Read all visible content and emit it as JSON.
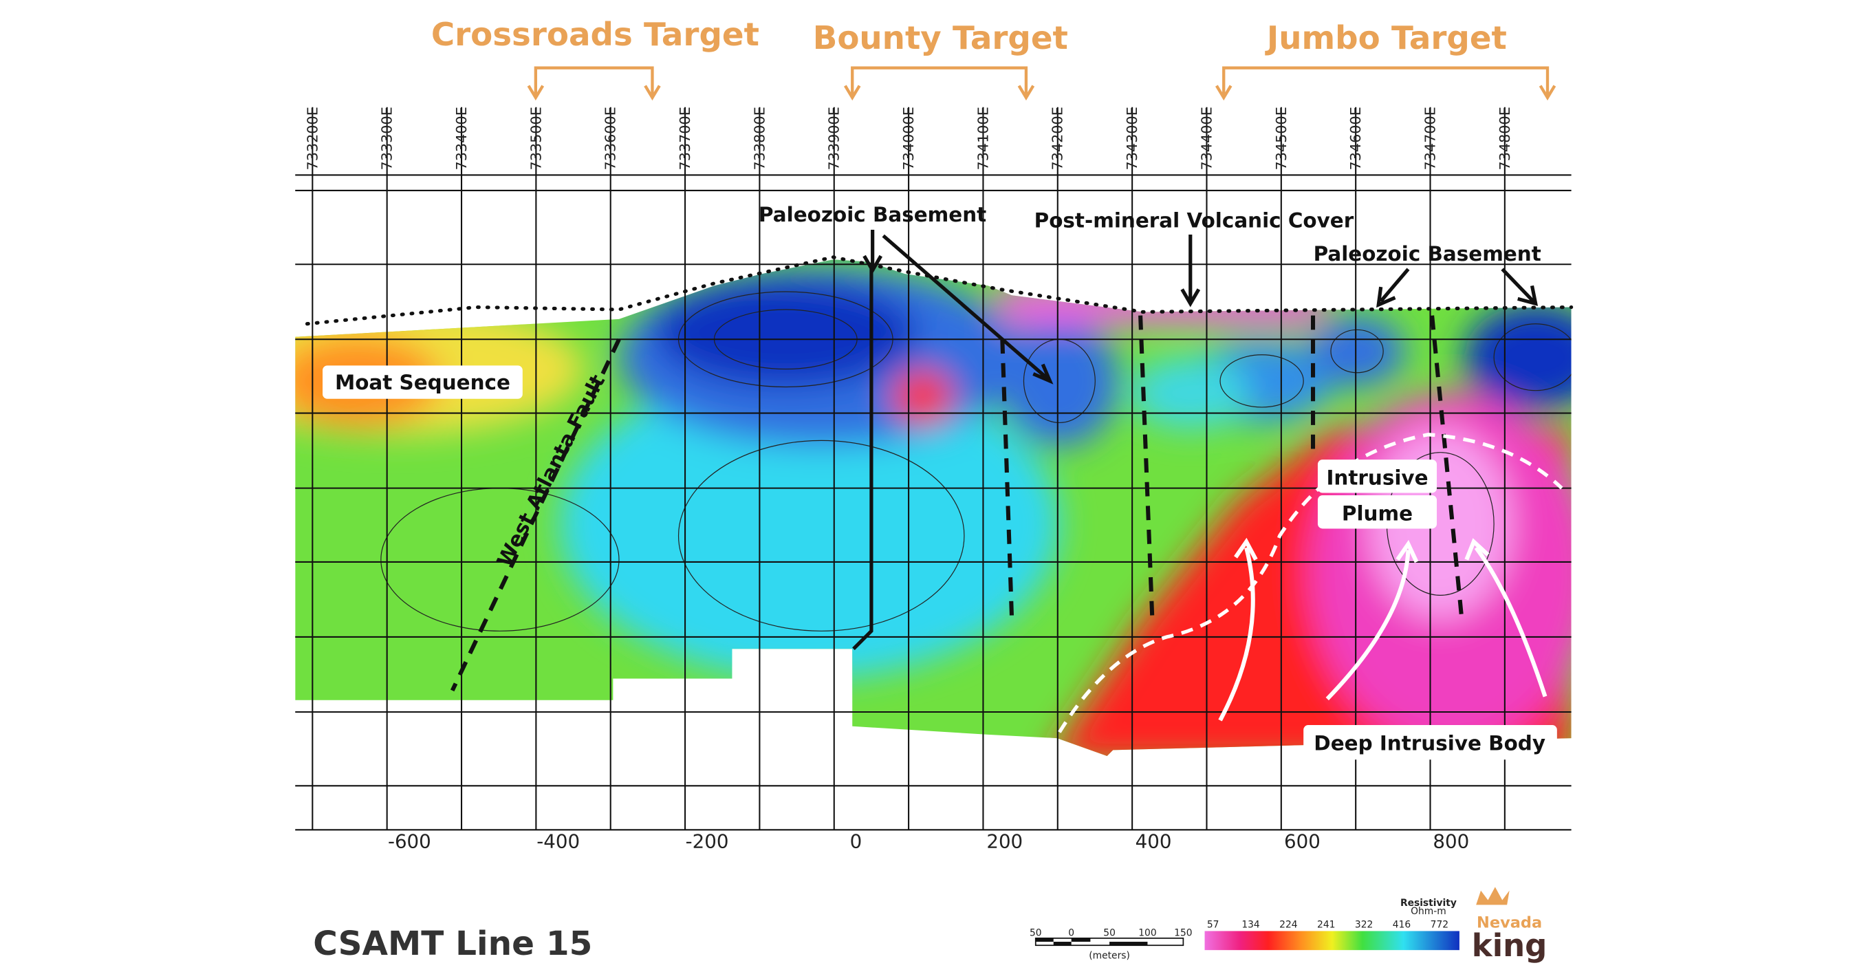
{
  "targets": [
    "Crossroads Target",
    "Bounty Target",
    "Jumbo Target"
  ],
  "eastings": [
    "733200E",
    "733300E",
    "733400E",
    "733500E",
    "733600E",
    "733700E",
    "733800E",
    "733900E",
    "734000E",
    "734100E",
    "734200E",
    "734300E",
    "734400E",
    "734500E",
    "734600E",
    "734700E",
    "734800E"
  ],
  "distance_labels": [
    "-600",
    "-400",
    "-200",
    "0",
    "200",
    "400",
    "600",
    "800"
  ],
  "annotations": {
    "moat": "Moat Sequence",
    "fault": "West Atlanta Fault",
    "basement_left": "Paleozoic Basement",
    "volcanic": "Post-mineral Volcanic Cover",
    "basement_right": "Paleozoic Basement",
    "intrusive": "Intrusive",
    "plume": "Plume",
    "deep": "Deep Intrusive Body"
  },
  "title": "CSAMT Line 15",
  "legend": {
    "title": "Resistivity",
    "unit": "Ohm-m",
    "values": [
      57,
      134,
      224,
      241,
      322,
      416,
      772
    ]
  },
  "scale_bar": {
    "labels": [
      "50",
      "0",
      "50",
      "100",
      "150"
    ],
    "unit": "(meters)"
  },
  "logo": [
    "Nevada",
    "king"
  ]
}
